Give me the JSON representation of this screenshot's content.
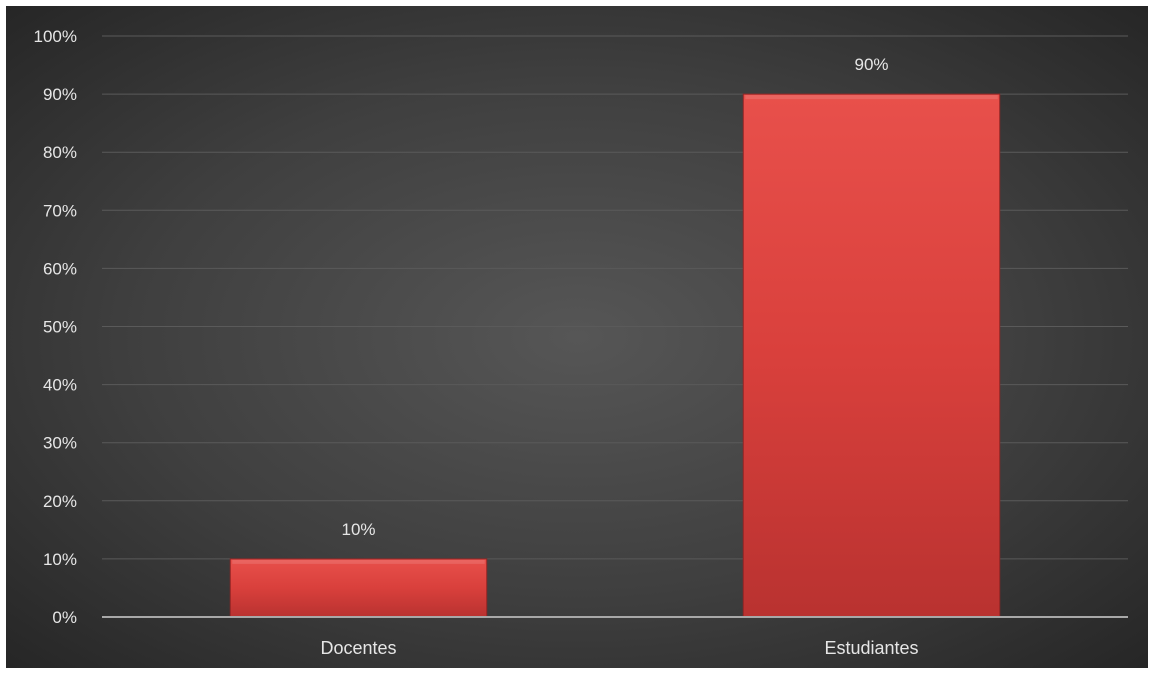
{
  "chart_data": {
    "type": "bar",
    "categories": [
      "Docentes",
      "Estudiantes"
    ],
    "values": [
      10,
      90
    ],
    "value_labels": [
      "10%",
      "90%"
    ],
    "ylim": [
      0,
      100
    ],
    "yticks": [
      "0%",
      "10%",
      "20%",
      "30%",
      "40%",
      "50%",
      "60%",
      "70%",
      "80%",
      "90%",
      "100%"
    ],
    "grid": true,
    "legend": "none",
    "colors": {
      "bar": "#d9403c",
      "bar_top": "#e8504b",
      "bar_bottom": "#b93230",
      "gridline": "#5a5a5a",
      "axis_line": "#a8a8a8",
      "text": "#e6e6e6"
    }
  }
}
